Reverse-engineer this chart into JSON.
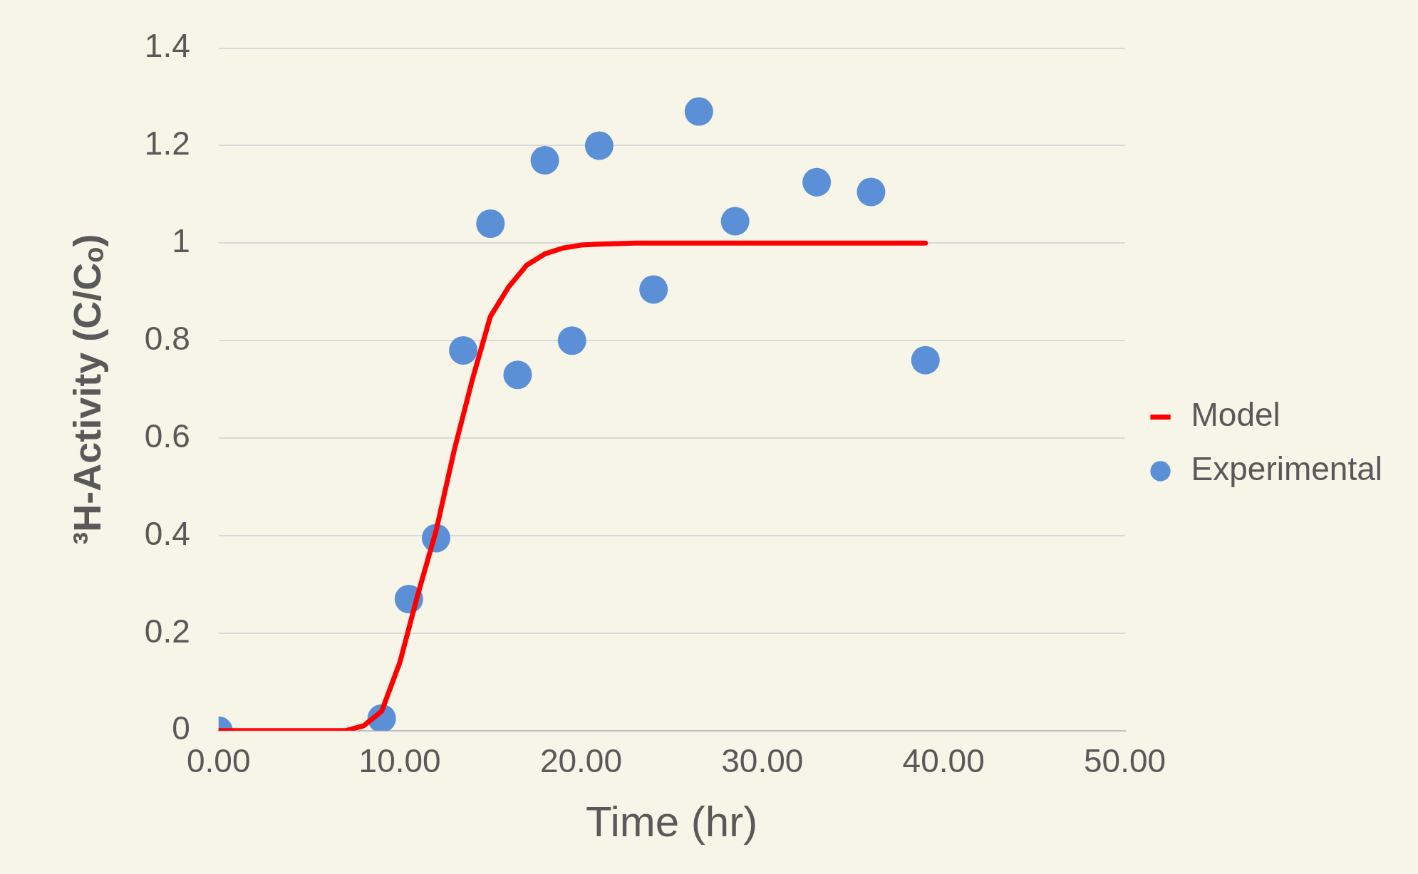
{
  "chart_data": {
    "type": "scatter",
    "xlabel": "Time (hr)",
    "ylabel": "³H-Activity (C/Cₒ)",
    "xlim": [
      0,
      50
    ],
    "xticks": [
      {
        "value": 0,
        "label": "0.00"
      },
      {
        "value": 10,
        "label": "10.00"
      },
      {
        "value": 20,
        "label": "20.00"
      },
      {
        "value": 30,
        "label": "30.00"
      },
      {
        "value": 40,
        "label": "40.00"
      },
      {
        "value": 50,
        "label": "50.00"
      }
    ],
    "ylim": [
      0,
      1.4
    ],
    "yticks": [
      0,
      0.2,
      0.4,
      0.6,
      0.8,
      1,
      1.2,
      1.4
    ],
    "grid": "y",
    "legend": "right",
    "series": [
      {
        "name": "Experimental",
        "color": "#5b8fd6",
        "marker": "circle",
        "x": [
          0,
          9,
          10.5,
          12,
          13.5,
          15,
          16.5,
          18,
          19.5,
          21,
          24,
          26.5,
          28.5,
          33,
          36,
          39
        ],
        "values": [
          0,
          0.025,
          0.27,
          0.395,
          0.78,
          1.04,
          0.73,
          1.17,
          0.8,
          1.2,
          0.905,
          1.27,
          1.045,
          1.125,
          1.105,
          0.76
        ]
      },
      {
        "name": "Model",
        "type": "line",
        "color": "#ff0000",
        "marker": "none",
        "line_style": "solid",
        "x": [
          0,
          7,
          8,
          9,
          10,
          11,
          12,
          13,
          14,
          15,
          16,
          17,
          18,
          19,
          20,
          21,
          23,
          26,
          30,
          35,
          39
        ],
        "values": [
          0,
          0,
          0.01,
          0.04,
          0.14,
          0.28,
          0.41,
          0.575,
          0.72,
          0.85,
          0.91,
          0.955,
          0.978,
          0.99,
          0.996,
          0.998,
          1,
          1,
          1,
          1,
          1
        ]
      }
    ]
  }
}
